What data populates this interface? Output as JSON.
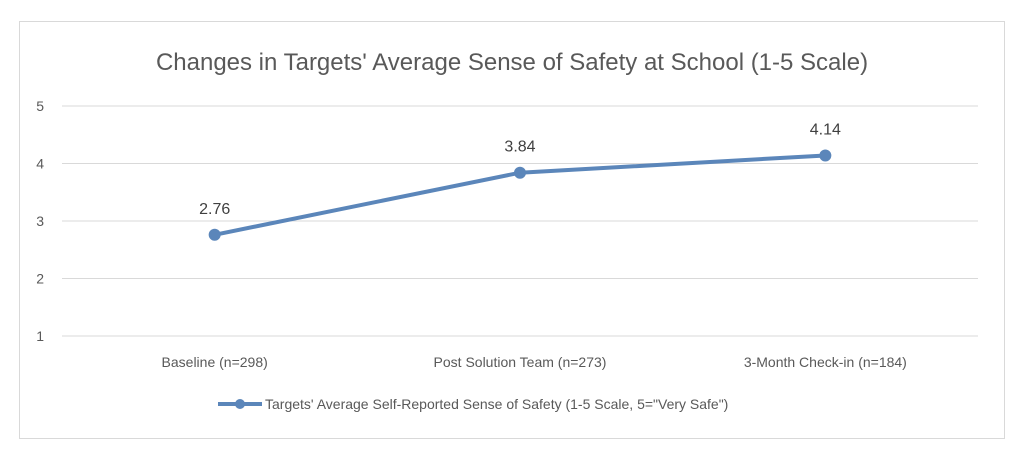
{
  "chart_data": {
    "type": "line",
    "title": "Changes in Targets' Average Sense of Safety at School (1-5 Scale)",
    "xlabel": "",
    "ylabel": "",
    "categories": [
      "Baseline (n=298)",
      "Post Solution Team (n=273)",
      "3-Month Check-in (n=184)"
    ],
    "series": [
      {
        "name": "Targets' Average Self-Reported Sense of Safety (1-5 Scale, 5=\"Very Safe\")",
        "values": [
          2.76,
          3.84,
          4.14
        ],
        "data_labels": [
          "2.76",
          "3.84",
          "4.14"
        ],
        "color": "#5b86ba"
      }
    ],
    "ylim": [
      1,
      5
    ],
    "yticks": [
      1,
      2,
      3,
      4,
      5
    ],
    "yticks_labels": [
      "1",
      "2",
      "3",
      "4",
      "5"
    ],
    "grid": true,
    "legend_position": "bottom",
    "gridline_color": "#d9d9d9"
  }
}
